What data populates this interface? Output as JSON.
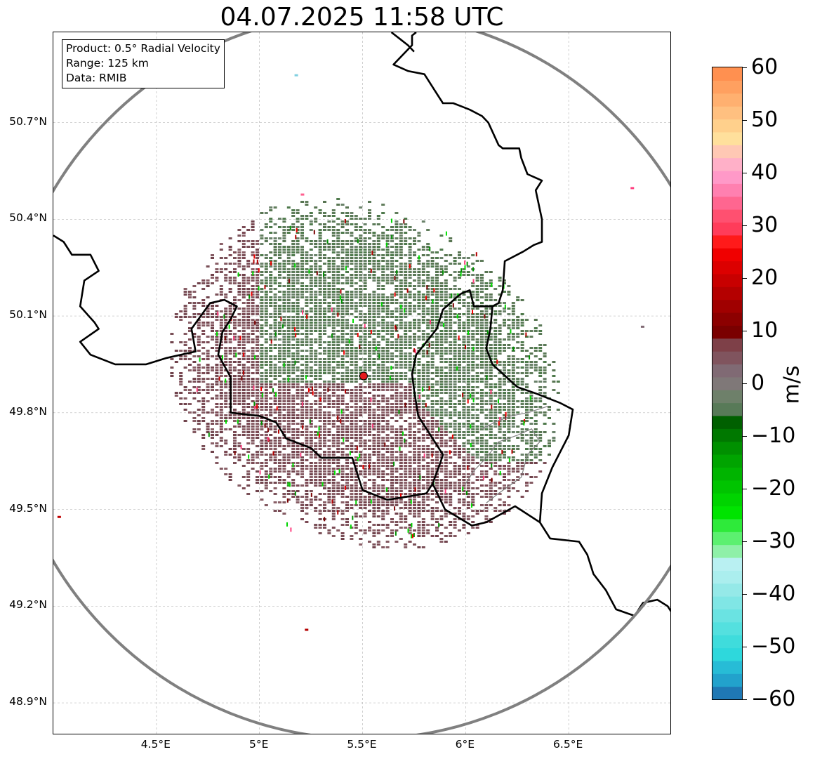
{
  "title": "04.07.2025 11:58 UTC",
  "info": {
    "product": "Product: 0.5° Radial Velocity",
    "range": "Range: 125 km",
    "data": "Data: RMIB"
  },
  "map": {
    "lon_range": [
      4.0,
      7.0
    ],
    "lat_range": [
      48.8,
      50.98
    ],
    "radar_site": {
      "lon": 5.505,
      "lat": 49.914
    },
    "range_ring_color": "#808080",
    "border_color": "#000000",
    "radar_marker_color": "#e41a1c",
    "lat_ticks": [
      "48.9°N",
      "49.2°N",
      "49.5°N",
      "49.8°N",
      "50.1°N",
      "50.4°N",
      "50.7°N"
    ],
    "lon_ticks": [
      "4.5°E",
      "5°E",
      "5.5°E",
      "6°E",
      "6.5°E"
    ],
    "gridlines": true
  },
  "colorbar": {
    "label": "m/s",
    "min": -60,
    "max": 60,
    "ticks": [
      "60",
      "50",
      "40",
      "30",
      "20",
      "10",
      "0",
      "−10",
      "−20",
      "−30",
      "−40",
      "−50",
      "−60"
    ],
    "colors": [
      "#1f78b4",
      "#22a2cc",
      "#27bcd6",
      "#2ed8dc",
      "#3fdcdc",
      "#54e0df",
      "#6ae3e2",
      "#80e6e5",
      "#95e9e8",
      "#abeeee",
      "#b9f0f2",
      "#8ff0a8",
      "#5cf070",
      "#2eea3a",
      "#00e400",
      "#00d400",
      "#00c400",
      "#00b400",
      "#00a400",
      "#009000",
      "#007800",
      "#006000",
      "#587a58",
      "#6e806a",
      "#7f7878",
      "#806a74",
      "#80545e",
      "#7e4048",
      "#7a0000",
      "#8c0000",
      "#a00000",
      "#b40000",
      "#c80000",
      "#dc0000",
      "#f00000",
      "#ff1a1a",
      "#ff3c5a",
      "#ff5070",
      "#ff6690",
      "#ff80b0",
      "#ff99c8",
      "#ffb0c8",
      "#ffc8b4",
      "#ffe09c",
      "#ffd08c",
      "#ffc080",
      "#ffb070",
      "#ffa060",
      "#ff9050"
    ]
  }
}
